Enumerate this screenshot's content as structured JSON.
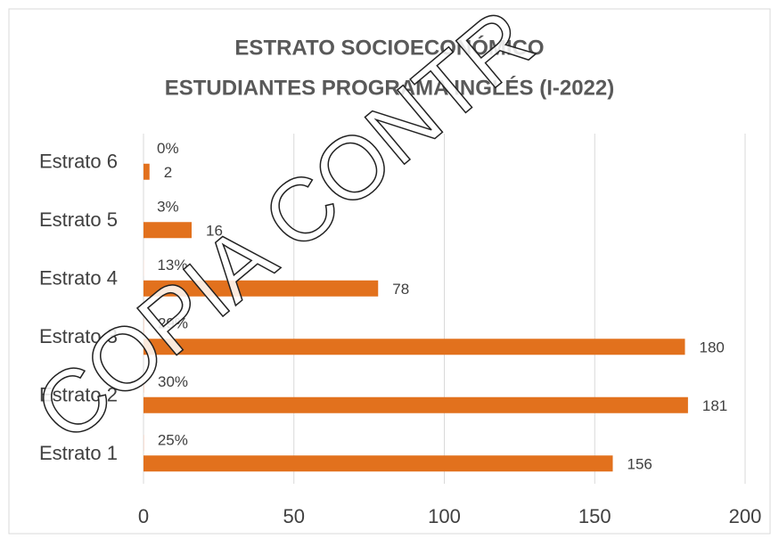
{
  "chart_data": {
    "type": "hbar",
    "title": [
      "ESTRATO SOCIOECONÓMICO",
      "ESTUDIANTES PROGRAMA INGLÉS (I-2022)"
    ],
    "categories": [
      "Estrato 1",
      "Estrato 2",
      "Estrato 3",
      "Estrato 4",
      "Estrato 5",
      "Estrato 6"
    ],
    "series": [
      {
        "color": "#f6d9cc",
        "values": [
          0.25,
          0.3,
          0.29,
          0.13,
          0.03,
          0
        ],
        "value_labels": [
          "25%",
          "30%",
          "29%",
          "13%",
          "3%",
          "0%"
        ]
      },
      {
        "color": "#e2711d",
        "values": [
          156,
          181,
          180,
          78,
          16,
          2
        ]
      }
    ],
    "xlim": [
      0,
      200
    ],
    "xticks": [
      0,
      50,
      100,
      150,
      200
    ],
    "grid": true,
    "watermark": "COPIA CONTR"
  }
}
